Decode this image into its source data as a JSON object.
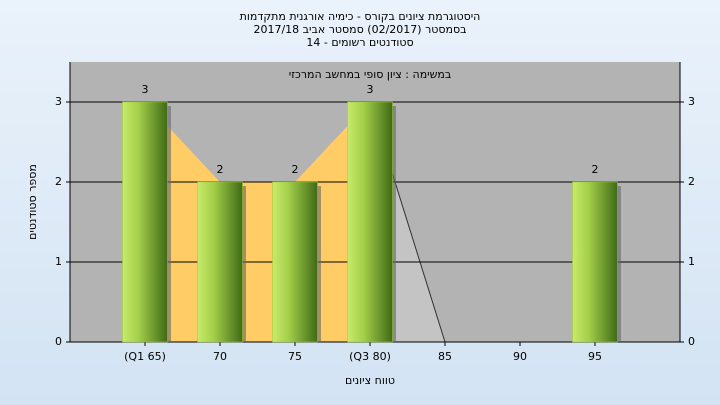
{
  "chart_data": {
    "type": "bar",
    "title": "היסטוגרמת ציונים בקורס - כימיה אורגנית מתקדמות",
    "subtitle": [
      "בסמסטר  (02/2017)  סמסטר אביב 2017/18",
      "סטודנטים רשומים - 14"
    ],
    "annotation": "במשימה : ציון סופי במחשב המרכזי",
    "x_label": "טווח ציונים",
    "y_label": "מספר סטודנטים",
    "categories": [
      "(Q1 65)",
      "70",
      "75",
      "(Q3 80)",
      "85",
      "90",
      "95"
    ],
    "values": [
      3,
      2,
      2,
      3,
      0,
      0,
      2
    ],
    "color": "#9acd32",
    "ylim": [
      0,
      3.5
    ],
    "yticks": [
      0,
      1,
      2,
      3
    ],
    "grid": true
  }
}
